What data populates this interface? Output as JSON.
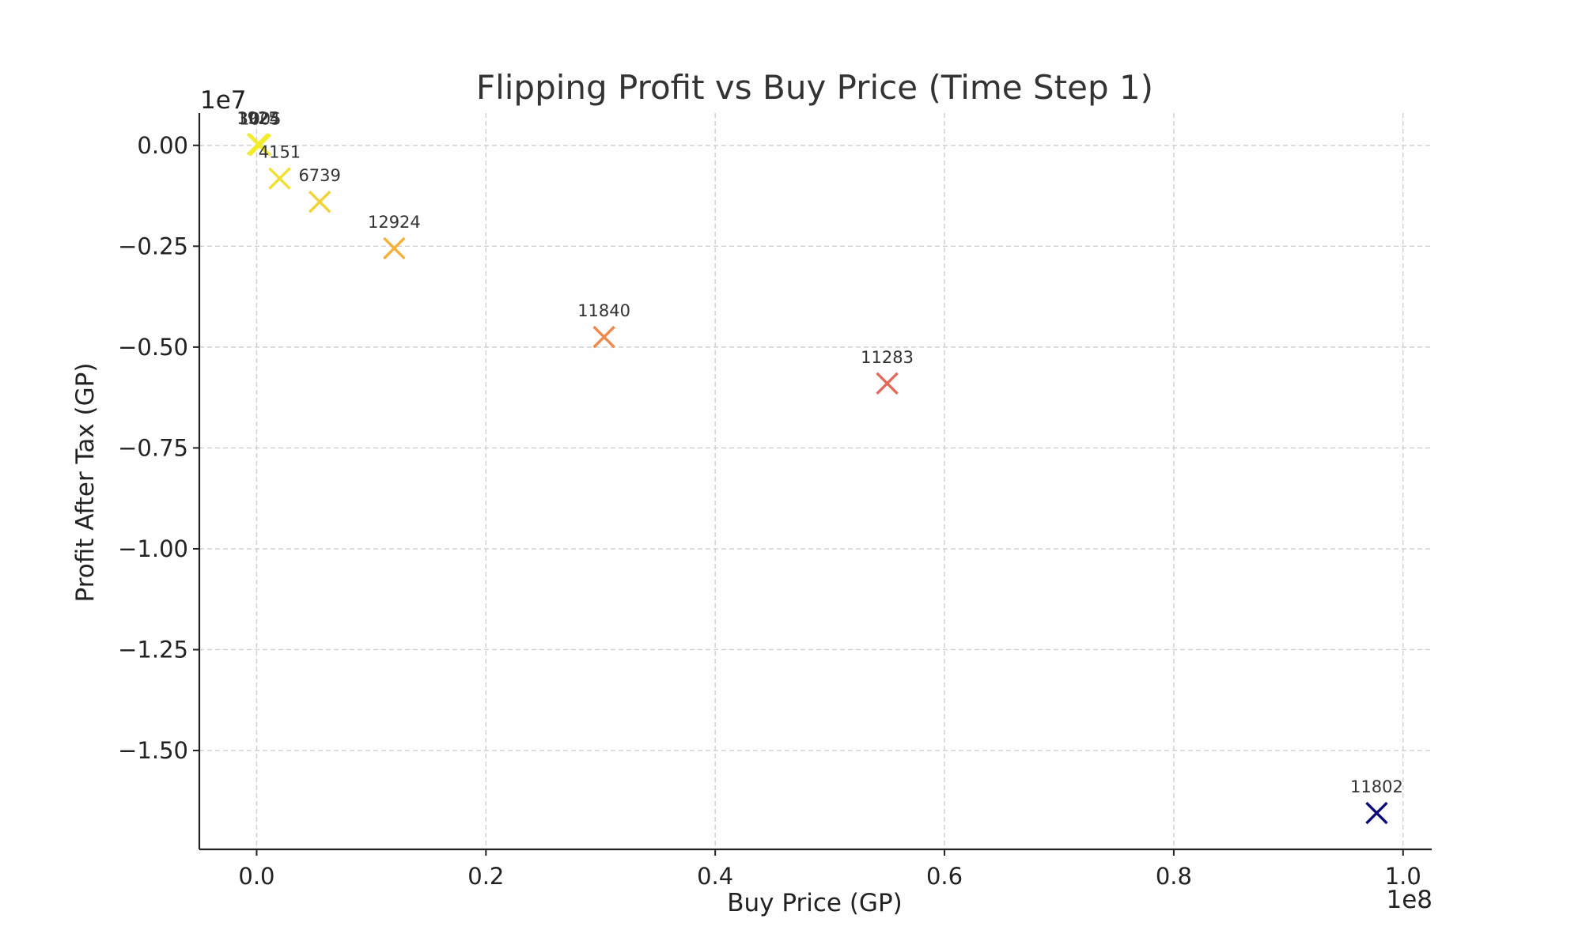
{
  "chart_data": {
    "type": "scatter",
    "title": "Flipping Profit vs Buy Price (Time Step 1)",
    "xlabel": "Buy Price (GP)",
    "ylabel": "Profit After Tax (GP)",
    "x_offset_text": "1e8",
    "y_offset_text": "1e7",
    "xlim": [
      -5000000,
      102500000
    ],
    "ylim": [
      -17450000,
      800000
    ],
    "x_ticks": [
      0,
      20000000,
      40000000,
      60000000,
      80000000,
      100000000
    ],
    "x_tick_labels": [
      "0.0",
      "0.2",
      "0.4",
      "0.6",
      "0.8",
      "1.0"
    ],
    "y_ticks": [
      0,
      -2500000,
      -5000000,
      -7500000,
      -10000000,
      -12500000,
      -15000000
    ],
    "y_tick_labels": [
      "0.00",
      "−0.25",
      "−0.50",
      "−0.75",
      "−1.00",
      "−1.25",
      "−1.50"
    ],
    "grid": true,
    "marker": "x",
    "points": [
      {
        "label": "1925",
        "x": 100000,
        "y": 30000,
        "color": "#f2ec2c"
      },
      {
        "label": "3024",
        "x": 200000,
        "y": 20000,
        "color": "#f2ec2c"
      },
      {
        "label": "1005",
        "x": 300000,
        "y": 10000,
        "color": "#f2ec2c"
      },
      {
        "label": "4151",
        "x": 2000000,
        "y": -820000,
        "color": "#f1e030"
      },
      {
        "label": "6739",
        "x": 5500000,
        "y": -1400000,
        "color": "#f4d235"
      },
      {
        "label": "12924",
        "x": 12000000,
        "y": -2550000,
        "color": "#f6b038"
      },
      {
        "label": "11840",
        "x": 30300000,
        "y": -4750000,
        "color": "#ef8a4a"
      },
      {
        "label": "11283",
        "x": 55000000,
        "y": -5900000,
        "color": "#e36a5b"
      },
      {
        "label": "11802",
        "x": 97700000,
        "y": -16550000,
        "color": "#0d0a7a"
      }
    ]
  }
}
